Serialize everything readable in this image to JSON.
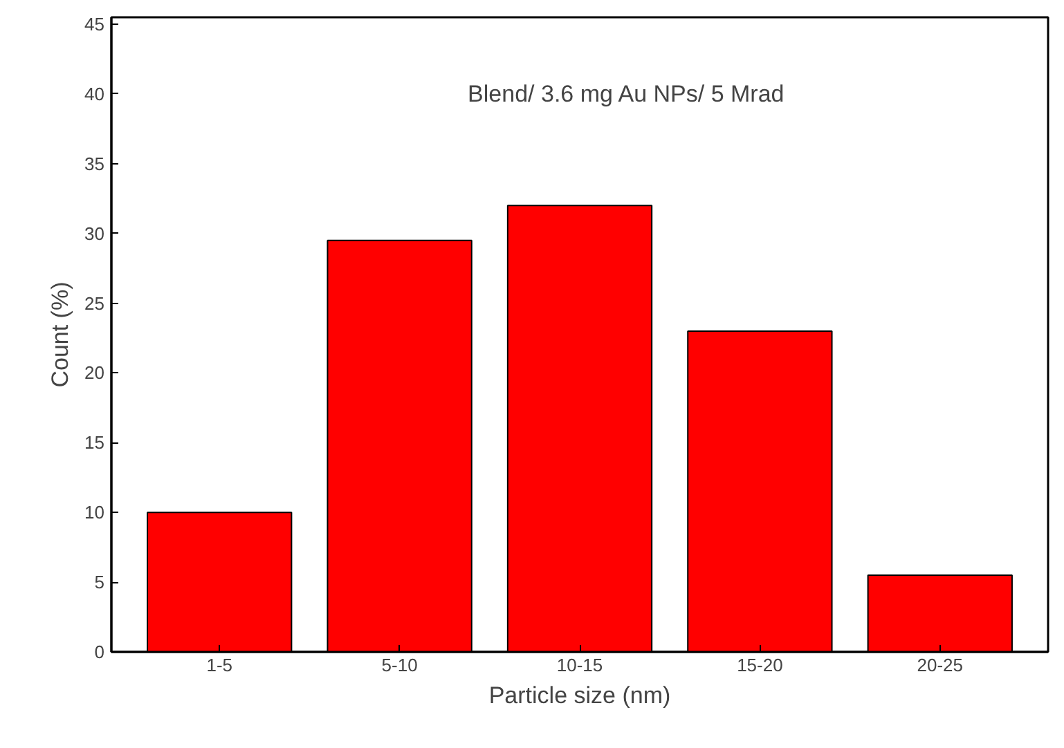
{
  "chart_data": {
    "type": "bar",
    "xlabel": "Particle size (nm)",
    "ylabel": "Count (%)",
    "categories": [
      "1-5",
      "5-10",
      "10-15",
      "15-20",
      "20-25"
    ],
    "values": [
      10,
      29.5,
      32,
      23,
      5.5
    ],
    "color": "#ff0000",
    "ylim": [
      0,
      45.5
    ],
    "yticks": [
      0,
      5,
      10,
      15,
      20,
      25,
      30,
      35,
      40,
      45
    ],
    "grid": false,
    "annotations": [
      "Blend/ 3.6 mg Au NPs/ 5 Mrad"
    ]
  }
}
